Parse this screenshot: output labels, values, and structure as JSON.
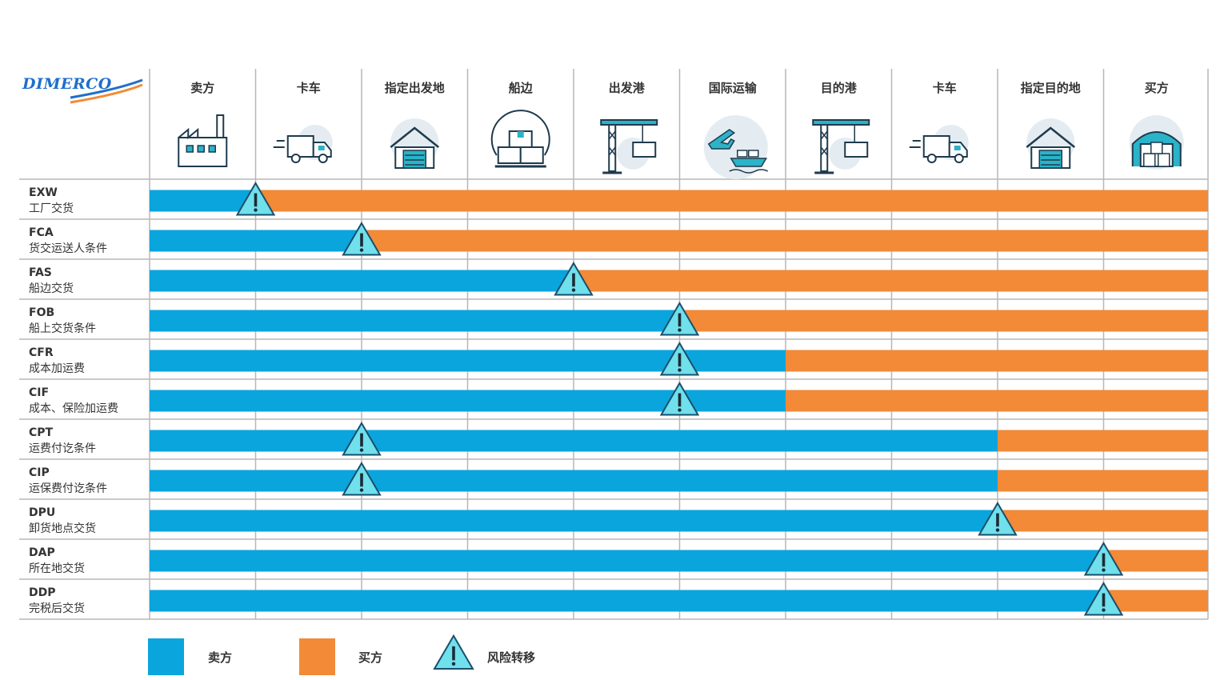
{
  "logo": {
    "text": "DIMERCO"
  },
  "colors": {
    "seller": "#0aa5dd",
    "buyer": "#f28a37",
    "risk_fill": "#6fe0ec",
    "risk_stroke": "#1b4f6b",
    "grid": "#b7b7b7",
    "icon_stroke": "#1f3a4d",
    "icon_accent": "#2bb3c8"
  },
  "chart_data": {
    "type": "bar",
    "subtype": "horizontal-stacked",
    "stages": [
      "卖方",
      "卡车",
      "指定出发地",
      "船边",
      "出发港",
      "国际运输",
      "目的港",
      "卡车",
      "指定目的地",
      "买方"
    ],
    "stage_icons": [
      "factory-icon",
      "truck-icon",
      "warehouse-icon",
      "boxes-icon",
      "crane-icon",
      "plane-ship-icon",
      "crane-icon",
      "truck-icon",
      "warehouse-icon",
      "warehouse-boxes-icon"
    ],
    "terms": [
      {
        "code": "EXW",
        "name": "工厂交货",
        "cost_transfer": 1.0,
        "risk_transfer": 1.0
      },
      {
        "code": "FCA",
        "name": "货交运送人条件",
        "cost_transfer": 2.0,
        "risk_transfer": 2.0
      },
      {
        "code": "FAS",
        "name": "船边交货",
        "cost_transfer": 4.0,
        "risk_transfer": 4.0
      },
      {
        "code": "FOB",
        "name": "船上交货条件",
        "cost_transfer": 5.0,
        "risk_transfer": 5.0
      },
      {
        "code": "CFR",
        "name": "成本加运费",
        "cost_transfer": 6.0,
        "risk_transfer": 5.0
      },
      {
        "code": "CIF",
        "name": "成本、保险加运费",
        "cost_transfer": 6.0,
        "risk_transfer": 5.0
      },
      {
        "code": "CPT",
        "name": "运费付讫条件",
        "cost_transfer": 8.0,
        "risk_transfer": 2.0
      },
      {
        "code": "CIP",
        "name": "运保费付讫条件",
        "cost_transfer": 8.0,
        "risk_transfer": 2.0
      },
      {
        "code": "DPU",
        "name": "卸货地点交货",
        "cost_transfer": 8.0,
        "risk_transfer": 8.0
      },
      {
        "code": "DAP",
        "name": "所在地交货",
        "cost_transfer": 9.0,
        "risk_transfer": 9.0
      },
      {
        "code": "DDP",
        "name": "完税后交货",
        "cost_transfer": 9.0,
        "risk_transfer": 9.0
      }
    ],
    "series": [
      {
        "name": "卖方",
        "color": "#0aa5dd"
      },
      {
        "name": "买方",
        "color": "#f28a37"
      }
    ],
    "risk_label": "风险转移",
    "legend_position": "bottom-left",
    "grid": true
  }
}
